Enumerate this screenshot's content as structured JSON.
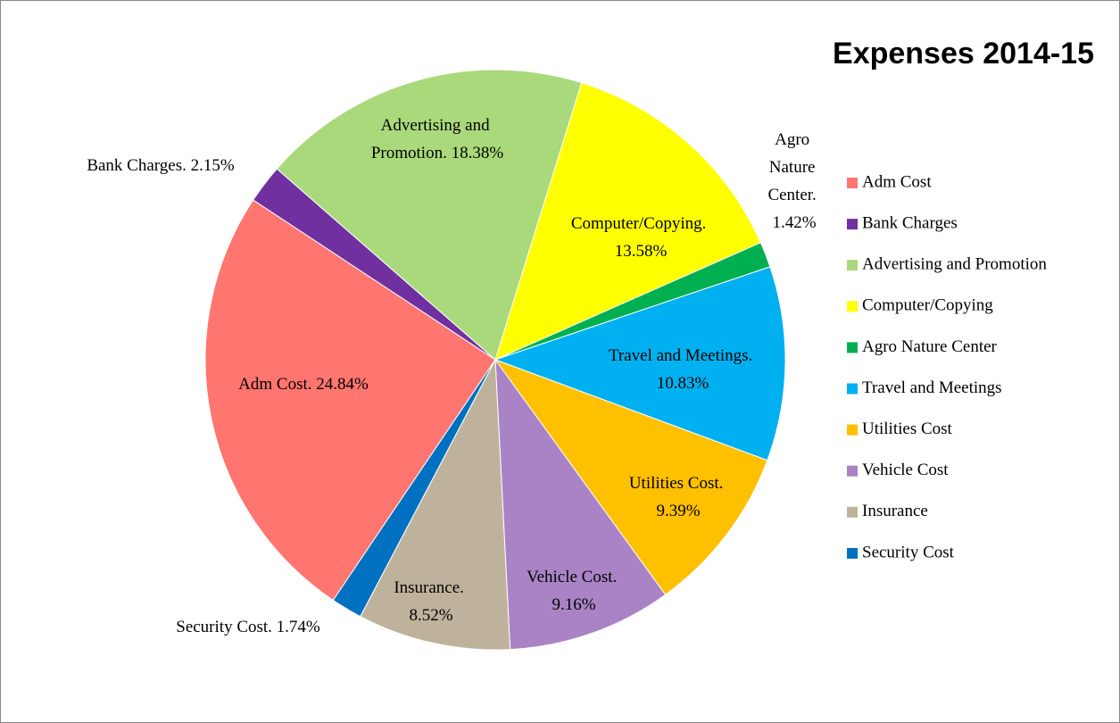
{
  "chart_data": {
    "type": "pie",
    "title": "Expenses 2014-15",
    "categories": [
      "Adm Cost",
      "Bank Charges",
      "Advertising and Promotion",
      "Computer/Copying",
      "Agro Nature Center",
      "Travel and Meetings",
      "Utilities Cost",
      "Vehicle Cost",
      "Insurance",
      "Security Cost"
    ],
    "values": [
      24.84,
      2.15,
      18.38,
      13.58,
      1.42,
      10.83,
      9.39,
      9.16,
      8.52,
      1.74
    ],
    "value_labels": [
      "Adm Cost. 24.84%",
      "Bank Charges. 2.15%",
      "Advertising and Promotion. 18.38%",
      "Computer/Copying. 13.58%",
      "Agro Nature Center. 1.42%",
      "Travel and Meetings. 10.83%",
      "Utilities Cost. 9.39%",
      "Vehicle Cost. 9.16%",
      "Insurance. 8.52%",
      "Security Cost. 1.74%"
    ],
    "colors": [
      "#ff7570",
      "#7030a0",
      "#a9d97a",
      "#ffff00",
      "#00b050",
      "#00b0f0",
      "#ffc000",
      "#a983c6",
      "#bfb29c",
      "#0070c0"
    ],
    "legend": "right"
  }
}
